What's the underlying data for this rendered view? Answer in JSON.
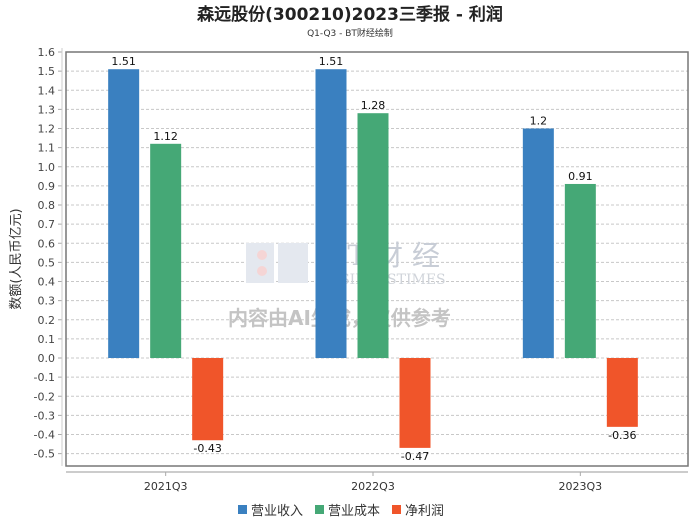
{
  "chart_data": {
    "type": "bar",
    "title": "森远股份(300210)2023三季报 - 利润",
    "subtitle": "Q1-Q3 - BT财经绘制",
    "xlabel": "",
    "ylabel": "数额(人民币亿元)",
    "ylim": [
      -0.6,
      1.6
    ],
    "yticks": [
      "1.6",
      "1.5",
      "1.4",
      "1.3",
      "1.2",
      "1.1",
      "1.0",
      "0.9",
      "0.8",
      "0.7",
      "0.6",
      "0.5",
      "0.4",
      "0.3",
      "0.2",
      "0.1",
      "0.0",
      "-0.1",
      "-0.2",
      "-0.3",
      "-0.4",
      "-0.5"
    ],
    "categories": [
      "2021Q3",
      "2022Q3",
      "2023Q3"
    ],
    "series": [
      {
        "name": "营业收入",
        "color": "#3a80c0",
        "values": [
          1.51,
          1.51,
          1.2
        ],
        "labels": [
          "1.51",
          "1.51",
          "1.2"
        ]
      },
      {
        "name": "营业成本",
        "color": "#45a876",
        "values": [
          1.12,
          1.28,
          0.91
        ],
        "labels": [
          "1.12",
          "1.28",
          "0.91"
        ]
      },
      {
        "name": "净利润",
        "color": "#f0552a",
        "values": [
          -0.43,
          -0.47,
          -0.36
        ],
        "labels": [
          "-0.43",
          "-0.47",
          "-0.36"
        ]
      }
    ],
    "grid": true,
    "legend_position": "bottom"
  },
  "watermark": {
    "brand": "B T 财 经",
    "brand_en": "BUSINESSTIMES",
    "notice": "内容由AI生成，仅供参考"
  }
}
